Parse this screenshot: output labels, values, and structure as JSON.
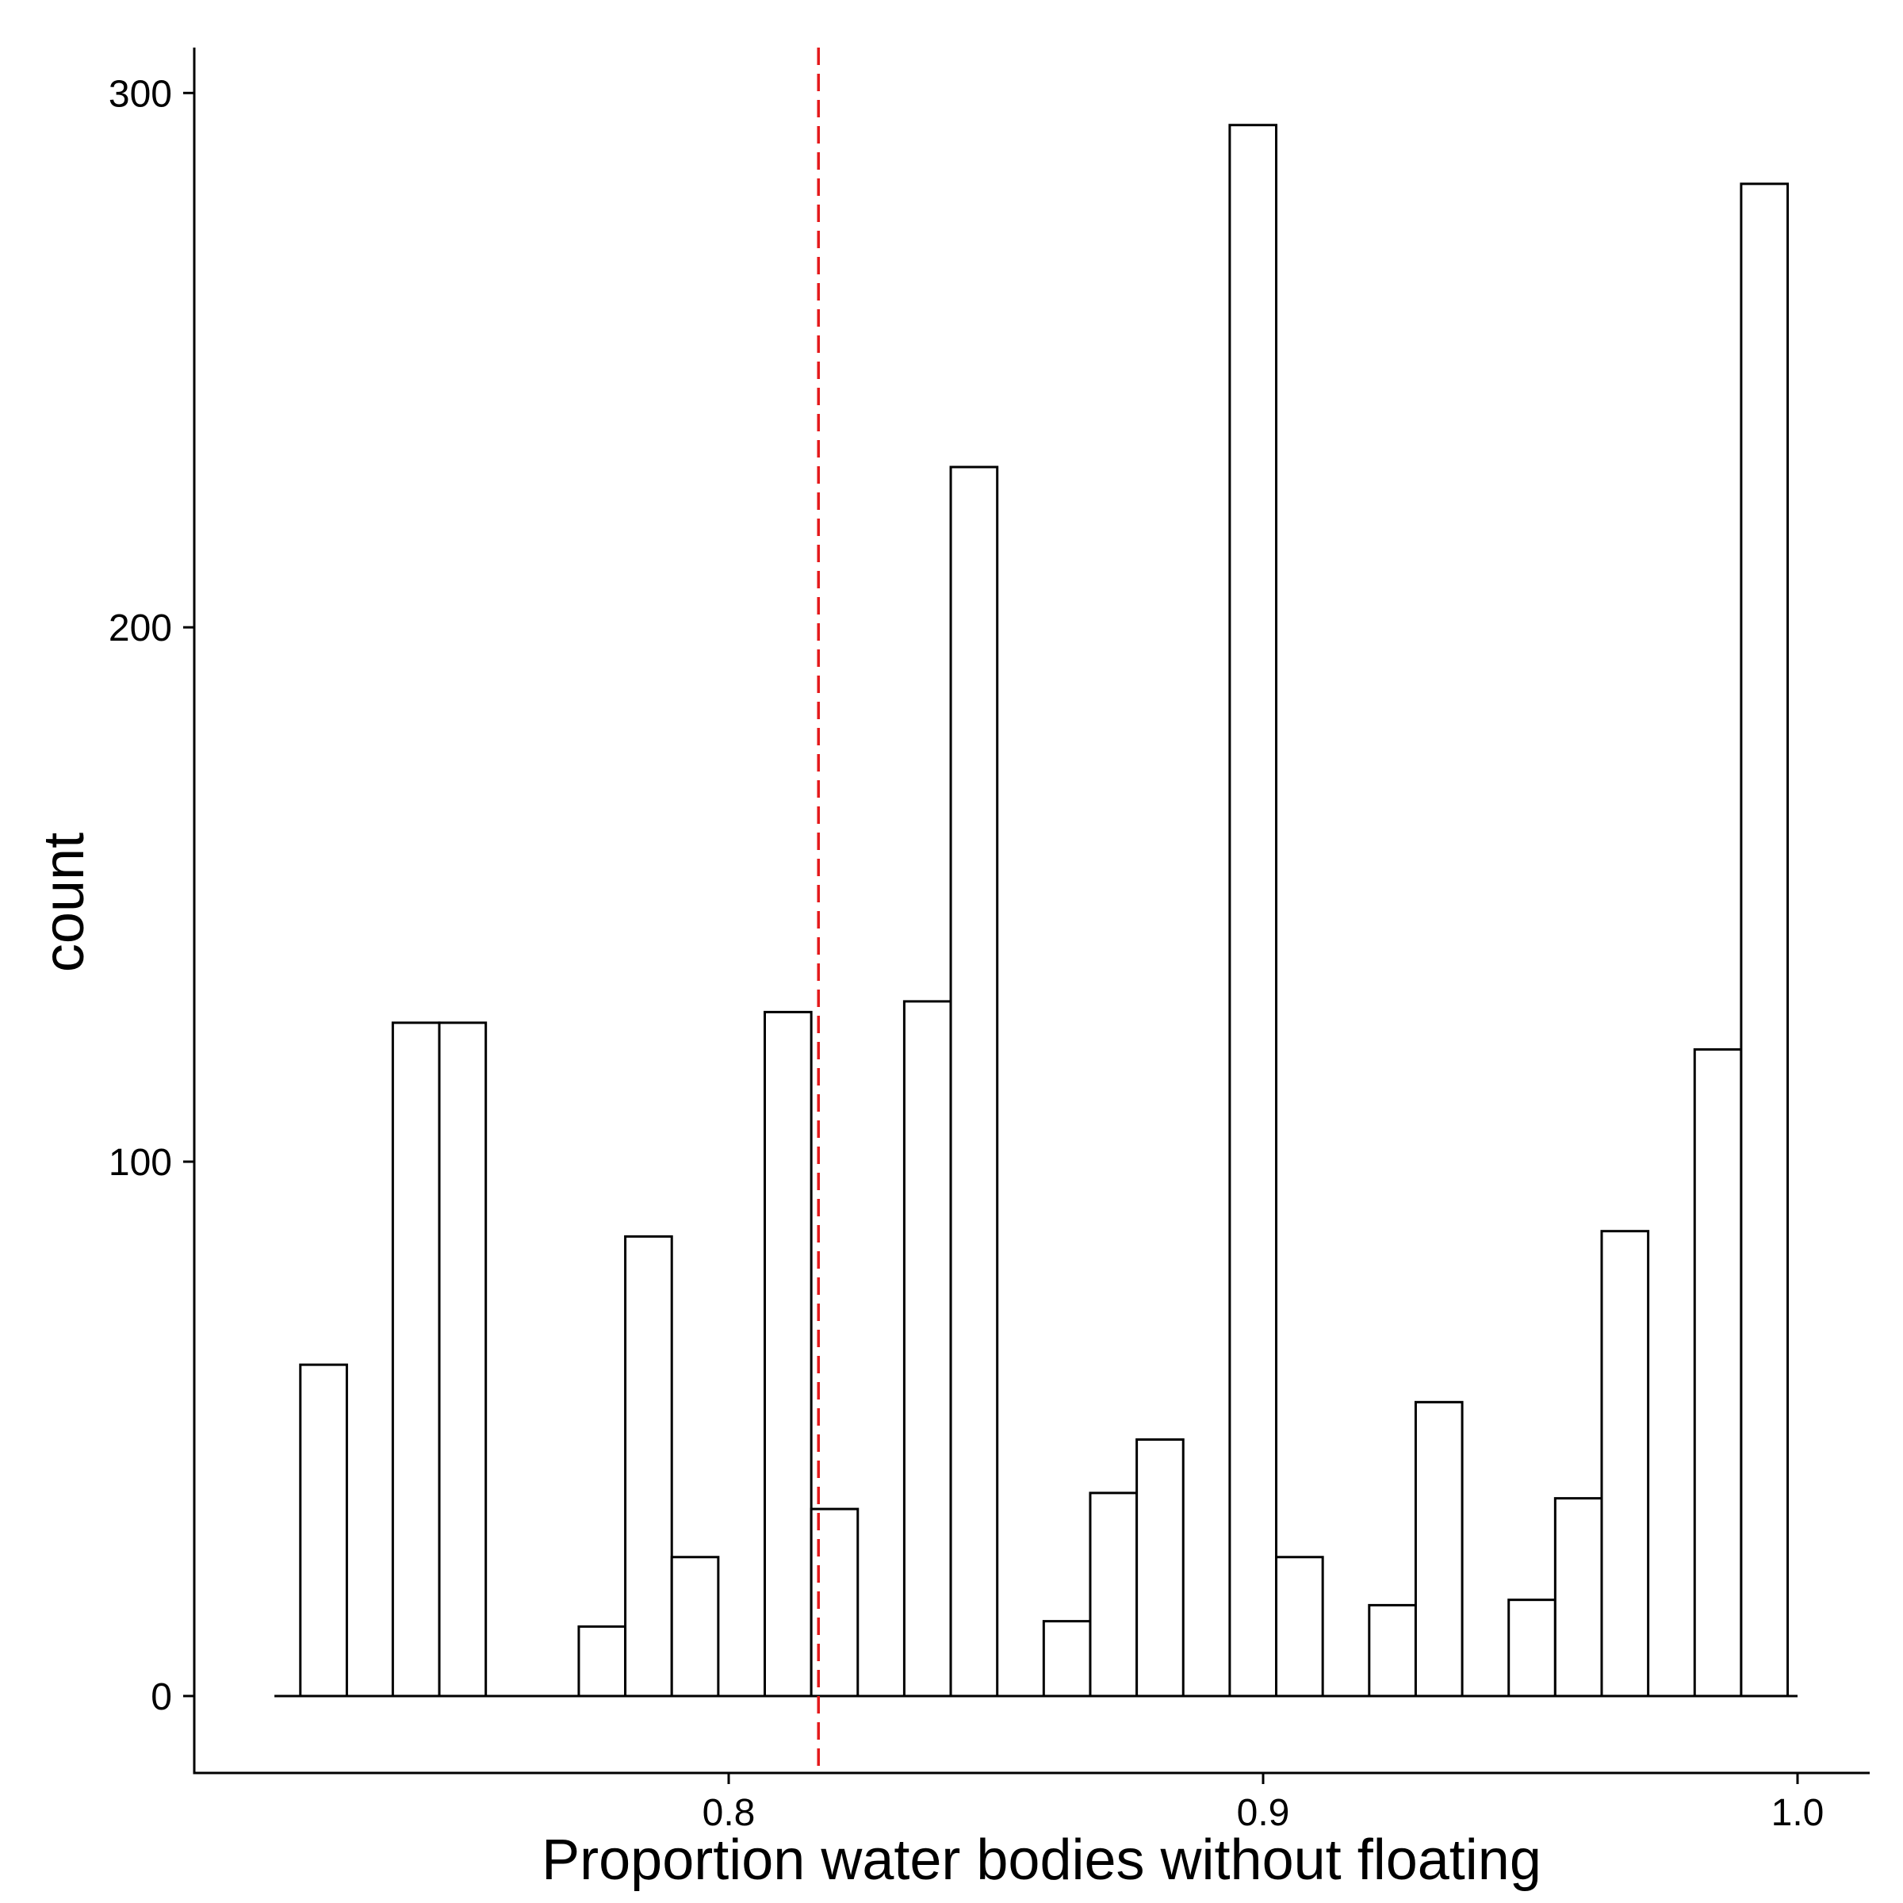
{
  "chart_data": {
    "type": "bar",
    "title": "",
    "xlabel": "Proportion water bodies without floating",
    "ylabel": "count",
    "x_ticks": [
      "0.8",
      "0.9",
      "1.0"
    ],
    "x_tick_values": [
      0.8,
      0.9,
      1.0
    ],
    "y_ticks": [
      "0",
      "100",
      "200",
      "300"
    ],
    "y_tick_values": [
      0,
      100,
      200,
      300
    ],
    "xlim": [
      0.7,
      1.0135
    ],
    "ylim": [
      -14.4,
      308.5
    ],
    "baseline_range": [
      0.715,
      1.0
    ],
    "grid": false,
    "legend": "none",
    "bin_width": 0.0087,
    "bars": [
      {
        "x": 0.7242,
        "count": 62
      },
      {
        "x": 0.7415,
        "count": 126
      },
      {
        "x": 0.7502,
        "count": 126
      },
      {
        "x": 0.7763,
        "count": 13
      },
      {
        "x": 0.785,
        "count": 86
      },
      {
        "x": 0.7937,
        "count": 26
      },
      {
        "x": 0.8111,
        "count": 128
      },
      {
        "x": 0.8198,
        "count": 35
      },
      {
        "x": 0.8372,
        "count": 130
      },
      {
        "x": 0.8459,
        "count": 230
      },
      {
        "x": 0.8633,
        "count": 14
      },
      {
        "x": 0.872,
        "count": 38
      },
      {
        "x": 0.8807,
        "count": 48
      },
      {
        "x": 0.8981,
        "count": 294
      },
      {
        "x": 0.9068,
        "count": 26
      },
      {
        "x": 0.9242,
        "count": 17
      },
      {
        "x": 0.9329,
        "count": 55
      },
      {
        "x": 0.9503,
        "count": 18
      },
      {
        "x": 0.959,
        "count": 37
      },
      {
        "x": 0.9677,
        "count": 87
      },
      {
        "x": 0.9851,
        "count": 121
      },
      {
        "x": 0.9938,
        "count": 283
      }
    ],
    "reference_line": {
      "x": 0.8168,
      "color": "#e41a1c",
      "style": "dashed"
    }
  }
}
